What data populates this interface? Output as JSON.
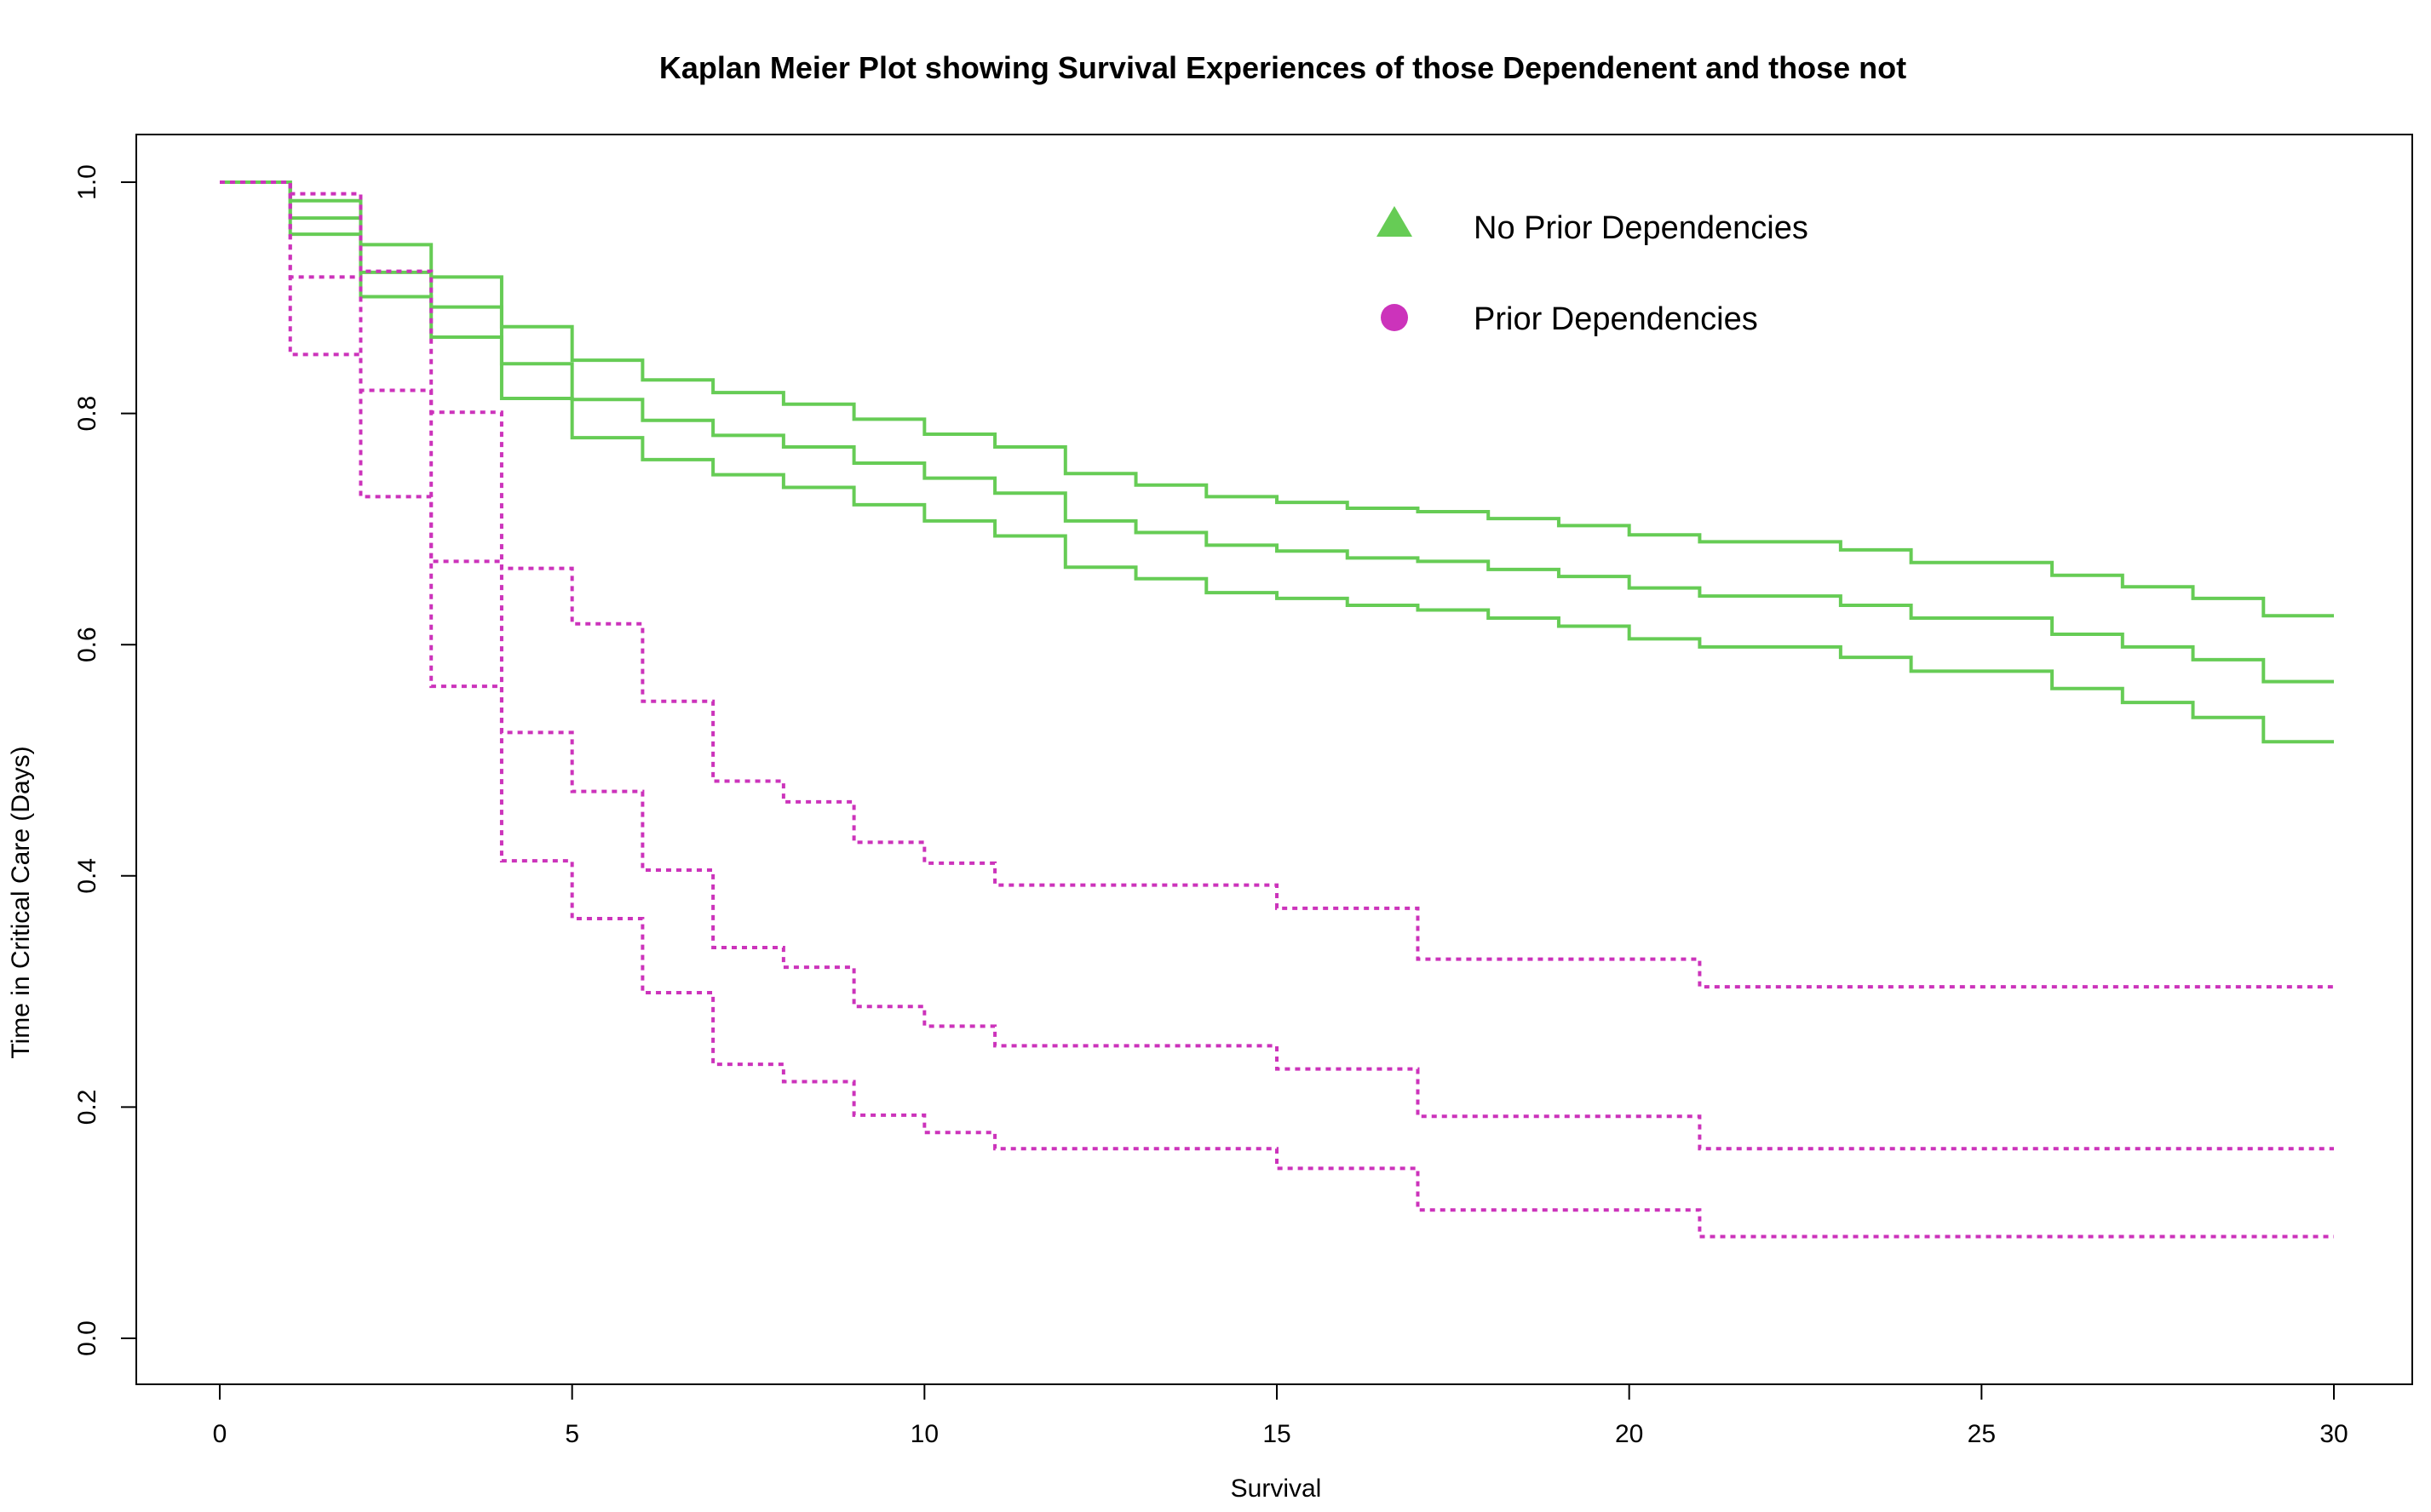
{
  "chart_data": {
    "type": "line",
    "title": "Kaplan Meier Plot showing Survival Experiences of those Dependenent and those not",
    "xlabel": "Survival",
    "ylabel": "Time in Critical Care (Days)",
    "xlim": [
      0,
      30
    ],
    "ylim": [
      0,
      1
    ],
    "xticks": [
      0,
      5,
      10,
      15,
      20,
      25,
      30
    ],
    "yticks": [
      "0.0",
      "0.2",
      "0.4",
      "0.6",
      "0.8",
      "1.0"
    ],
    "grid": false,
    "legend_position": "top-center",
    "legend": [
      {
        "label": "No Prior Dependencies",
        "marker": "triangle",
        "color": "#66cc55"
      },
      {
        "label": "Prior Dependencies",
        "marker": "circle",
        "color": "#cc33bb"
      }
    ],
    "series": [
      {
        "group": "No Prior Dependencies",
        "kind": "upper",
        "color": "#66cc55",
        "style": "solid",
        "x": [
          0,
          1,
          2,
          3,
          4,
          5,
          6,
          7,
          8,
          9,
          10,
          11,
          12,
          13,
          14,
          15,
          16,
          17,
          18,
          19,
          20,
          21,
          23,
          24,
          26,
          27,
          28,
          29,
          30
        ],
        "y": [
          1.0,
          0.984,
          0.946,
          0.918,
          0.875,
          0.846,
          0.829,
          0.818,
          0.808,
          0.795,
          0.782,
          0.771,
          0.748,
          0.738,
          0.728,
          0.723,
          0.718,
          0.715,
          0.709,
          0.703,
          0.695,
          0.689,
          0.682,
          0.671,
          0.66,
          0.65,
          0.64,
          0.625,
          0.625
        ]
      },
      {
        "group": "No Prior Dependencies",
        "kind": "estimate",
        "color": "#66cc55",
        "style": "solid",
        "x": [
          0,
          1,
          2,
          3,
          4,
          5,
          6,
          7,
          8,
          9,
          10,
          11,
          12,
          13,
          14,
          15,
          16,
          17,
          18,
          19,
          20,
          21,
          23,
          24,
          26,
          27,
          28,
          29,
          30
        ],
        "y": [
          1.0,
          0.969,
          0.922,
          0.892,
          0.843,
          0.812,
          0.794,
          0.781,
          0.771,
          0.757,
          0.744,
          0.731,
          0.707,
          0.697,
          0.686,
          0.681,
          0.675,
          0.672,
          0.665,
          0.659,
          0.649,
          0.642,
          0.634,
          0.623,
          0.609,
          0.598,
          0.587,
          0.568,
          0.568
        ]
      },
      {
        "group": "No Prior Dependencies",
        "kind": "lower",
        "color": "#66cc55",
        "style": "solid",
        "x": [
          0,
          1,
          2,
          3,
          4,
          5,
          6,
          7,
          8,
          9,
          10,
          11,
          12,
          13,
          14,
          15,
          16,
          17,
          18,
          19,
          20,
          21,
          23,
          24,
          26,
          27,
          28,
          29,
          30
        ],
        "y": [
          1.0,
          0.955,
          0.901,
          0.866,
          0.813,
          0.779,
          0.76,
          0.747,
          0.736,
          0.721,
          0.707,
          0.694,
          0.667,
          0.657,
          0.645,
          0.64,
          0.634,
          0.63,
          0.623,
          0.616,
          0.605,
          0.598,
          0.589,
          0.577,
          0.562,
          0.55,
          0.537,
          0.516,
          0.516
        ]
      },
      {
        "group": "Prior Dependencies",
        "kind": "upper",
        "color": "#cc33bb",
        "style": "dotted",
        "x": [
          0,
          1,
          2,
          3,
          4,
          5,
          6,
          7,
          8,
          9,
          10,
          11,
          15,
          17,
          21,
          30
        ],
        "y": [
          1.0,
          0.99,
          0.923,
          0.801,
          0.666,
          0.618,
          0.551,
          0.482,
          0.464,
          0.429,
          0.411,
          0.392,
          0.372,
          0.328,
          0.304,
          0.304
        ]
      },
      {
        "group": "Prior Dependencies",
        "kind": "estimate",
        "color": "#cc33bb",
        "style": "dotted",
        "x": [
          0,
          1,
          2,
          3,
          4,
          5,
          6,
          7,
          8,
          9,
          10,
          11,
          15,
          17,
          21,
          30
        ],
        "y": [
          1.0,
          0.918,
          0.82,
          0.672,
          0.524,
          0.473,
          0.405,
          0.338,
          0.321,
          0.287,
          0.27,
          0.253,
          0.233,
          0.192,
          0.164,
          0.164
        ]
      },
      {
        "group": "Prior Dependencies",
        "kind": "lower",
        "color": "#cc33bb",
        "style": "dotted",
        "x": [
          0,
          1,
          2,
          3,
          4,
          5,
          6,
          7,
          8,
          9,
          10,
          11,
          15,
          17,
          21,
          30
        ],
        "y": [
          1.0,
          0.851,
          0.728,
          0.564,
          0.413,
          0.363,
          0.299,
          0.237,
          0.222,
          0.193,
          0.178,
          0.164,
          0.147,
          0.111,
          0.088,
          0.088
        ]
      }
    ]
  }
}
